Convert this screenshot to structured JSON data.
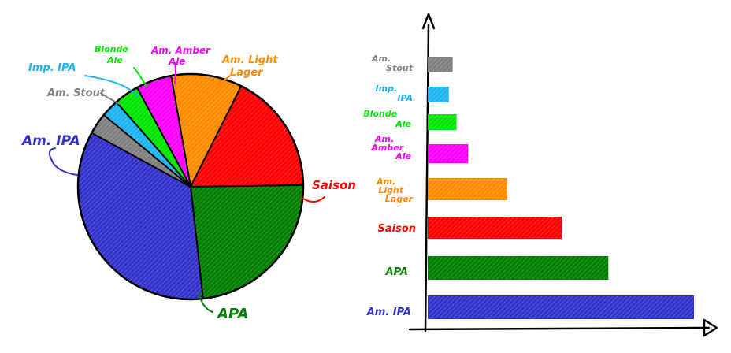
{
  "chart_data": [
    {
      "type": "pie",
      "slices": [
        {
          "label": "Am. Light Lager",
          "value": 10,
          "color": "#FF8C00"
        },
        {
          "label": "Saison",
          "value": 17,
          "color": "#FF0000"
        },
        {
          "label": "APA",
          "value": 23,
          "color": "#007F00"
        },
        {
          "label": "Am. IPA",
          "value": 34,
          "color": "#3333CC"
        },
        {
          "label": "Am. Stout",
          "value": 3,
          "color": "#808080"
        },
        {
          "label": "Imp. IPA",
          "value": 2.5,
          "color": "#1EB4F0"
        },
        {
          "label": "Blonde Ale",
          "value": 3.5,
          "color": "#00E600"
        },
        {
          "label": "Am. Amber Ale",
          "value": 5,
          "color": "#FF00FF"
        }
      ]
    },
    {
      "type": "bar",
      "orientation": "horizontal",
      "categories": [
        "Am. Stout",
        "Imp. IPA",
        "Blonde Ale",
        "Am. Amber Ale",
        "Am. Light Lager",
        "Saison",
        "APA",
        "Am. IPA"
      ],
      "values": [
        3,
        2.5,
        3.5,
        5,
        10,
        17,
        23,
        34
      ],
      "colors": [
        "#808080",
        "#1EB4F0",
        "#00E600",
        "#FF00FF",
        "#FF8C00",
        "#FF0000",
        "#007F00",
        "#3333CC"
      ]
    }
  ],
  "pie_labels": {
    "am_light_lager": [
      "Am. Light",
      "Lager"
    ],
    "saison": "Saison",
    "apa": "APA",
    "am_ipa": "Am. IPA",
    "am_stout": "Am. Stout",
    "imp_ipa": "Imp. IPA",
    "blonde_ale": [
      "Blonde",
      "Ale"
    ],
    "am_amber_ale": [
      "Am. Amber",
      "Ale"
    ]
  },
  "bar_labels": {
    "am_stout": [
      "Am.",
      "Stout"
    ],
    "imp_ipa": [
      "Imp.",
      "IPA"
    ],
    "blonde_ale": [
      "Blonde",
      "Ale"
    ],
    "am_amber_ale": [
      "Am.",
      "Amber",
      "Ale"
    ],
    "am_light_lager": [
      "Am.",
      "Light",
      "Lager"
    ],
    "saison": "Saison",
    "apa": "APA",
    "am_ipa": "Am. IPA"
  }
}
